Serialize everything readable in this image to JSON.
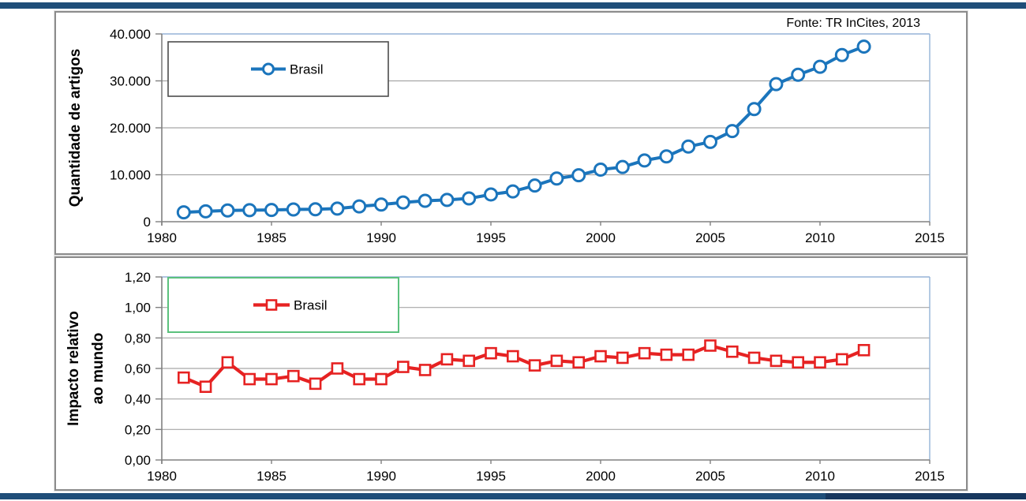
{
  "source_note": "Fonte: TR InCites, 2013",
  "accent": {
    "bar_color": "#1F4E79",
    "bar_color_dark": "#17375E"
  },
  "chart_data": [
    {
      "type": "line",
      "title": "",
      "ylabel_lines": [
        "Quantidade de artigos"
      ],
      "xlabel": "",
      "legend_label": "Brasil",
      "legend_position": "top-left-inside",
      "legend_border_color": "#4D4D4D",
      "grid": true,
      "xlim": [
        1980,
        2015
      ],
      "ylim": [
        0,
        40000
      ],
      "xtick_values": [
        1980,
        1985,
        1990,
        1995,
        2000,
        2005,
        2010,
        2015
      ],
      "xtick_labels": [
        "1980",
        "1985",
        "1990",
        "1995",
        "2000",
        "2005",
        "2010",
        "2015"
      ],
      "ytick_values": [
        0,
        10000,
        20000,
        30000,
        40000
      ],
      "ytick_labels": [
        "0",
        "10.000",
        "20.000",
        "30.000",
        "40.000"
      ],
      "series": [
        {
          "name": "Brasil",
          "color": "#1B75BC",
          "marker": "circle",
          "x": [
            1981,
            1982,
            1983,
            1984,
            1985,
            1986,
            1987,
            1988,
            1989,
            1990,
            1991,
            1992,
            1993,
            1994,
            1995,
            1996,
            1997,
            1998,
            1999,
            2000,
            2001,
            2002,
            2003,
            2004,
            2005,
            2006,
            2007,
            2008,
            2009,
            2010,
            2011,
            2012
          ],
          "values": [
            2000,
            2200,
            2400,
            2450,
            2500,
            2600,
            2650,
            2800,
            3250,
            3650,
            4100,
            4450,
            4650,
            4950,
            5800,
            6450,
            7700,
            9200,
            9900,
            11100,
            11650,
            13050,
            13900,
            16000,
            17000,
            19300,
            24000,
            29300,
            31300,
            33000,
            35500,
            37300
          ]
        }
      ]
    },
    {
      "type": "line",
      "title": "",
      "ylabel_lines": [
        "Impacto relativo",
        "ao mundo"
      ],
      "xlabel": "",
      "legend_label": "Brasil",
      "legend_position": "top-left-inside",
      "legend_border_color": "#5BC17D",
      "grid": true,
      "xlim": [
        1980,
        2015
      ],
      "ylim": [
        0,
        1.2
      ],
      "xtick_values": [
        1980,
        1985,
        1990,
        1995,
        2000,
        2005,
        2010,
        2015
      ],
      "xtick_labels": [
        "1980",
        "1985",
        "1990",
        "1995",
        "2000",
        "2005",
        "2010",
        "2015"
      ],
      "ytick_values": [
        0,
        0.2,
        0.4,
        0.6,
        0.8,
        1.0,
        1.2
      ],
      "ytick_labels": [
        "0,00",
        "0,20",
        "0,40",
        "0,60",
        "0,80",
        "1,00",
        "1,20"
      ],
      "series": [
        {
          "name": "Brasil",
          "color": "#E62222",
          "marker": "square",
          "x": [
            1981,
            1982,
            1983,
            1984,
            1985,
            1986,
            1987,
            1988,
            1989,
            1990,
            1991,
            1992,
            1993,
            1994,
            1995,
            1996,
            1997,
            1998,
            1999,
            2000,
            2001,
            2002,
            2003,
            2004,
            2005,
            2006,
            2007,
            2008,
            2009,
            2010,
            2011,
            2012
          ],
          "values": [
            0.54,
            0.48,
            0.64,
            0.53,
            0.53,
            0.55,
            0.5,
            0.6,
            0.53,
            0.53,
            0.61,
            0.59,
            0.66,
            0.65,
            0.7,
            0.68,
            0.62,
            0.65,
            0.64,
            0.68,
            0.67,
            0.7,
            0.69,
            0.69,
            0.75,
            0.71,
            0.67,
            0.65,
            0.64,
            0.64,
            0.66,
            0.72
          ]
        }
      ]
    }
  ]
}
